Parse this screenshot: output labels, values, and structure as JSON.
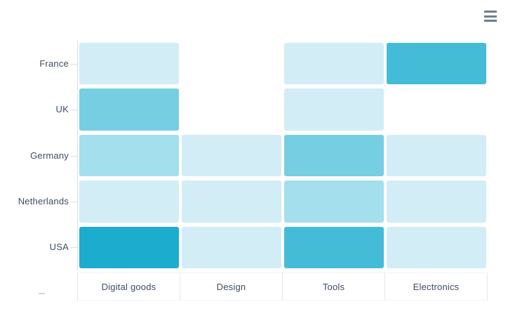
{
  "toolbar": {
    "context_menu_button": {
      "icon": "hamburger-icon"
    }
  },
  "colors": {
    "background": "#ffffff",
    "axis_line": "#d9dfe8",
    "axis_tick": "#d9dfe8",
    "label_text": "#3d4c66",
    "grid_line": "#e4e6ec",
    "menu_icon": "#6e7e8e"
  },
  "chart_data": {
    "type": "heatmap",
    "x_categories": [
      "Digital goods",
      "Design",
      "Tools",
      "Electronics"
    ],
    "y_categories": [
      "France",
      "UK",
      "Germany",
      "Netherlands",
      "USA"
    ],
    "values": [
      [
        1,
        null,
        1,
        4
      ],
      [
        3,
        null,
        1,
        null
      ],
      [
        2,
        1,
        3,
        1
      ],
      [
        1,
        1,
        2,
        1
      ],
      [
        5,
        1,
        4,
        1
      ]
    ],
    "value_colors": {
      "1": "#d2edf6",
      "2": "#a3dfec",
      "3": "#76cee3",
      "4": "#45bcd7",
      "5": "#1cacce"
    },
    "title": "",
    "xlabel": "",
    "ylabel": "",
    "legend": "none",
    "grid": "x-axis label boxes only"
  }
}
